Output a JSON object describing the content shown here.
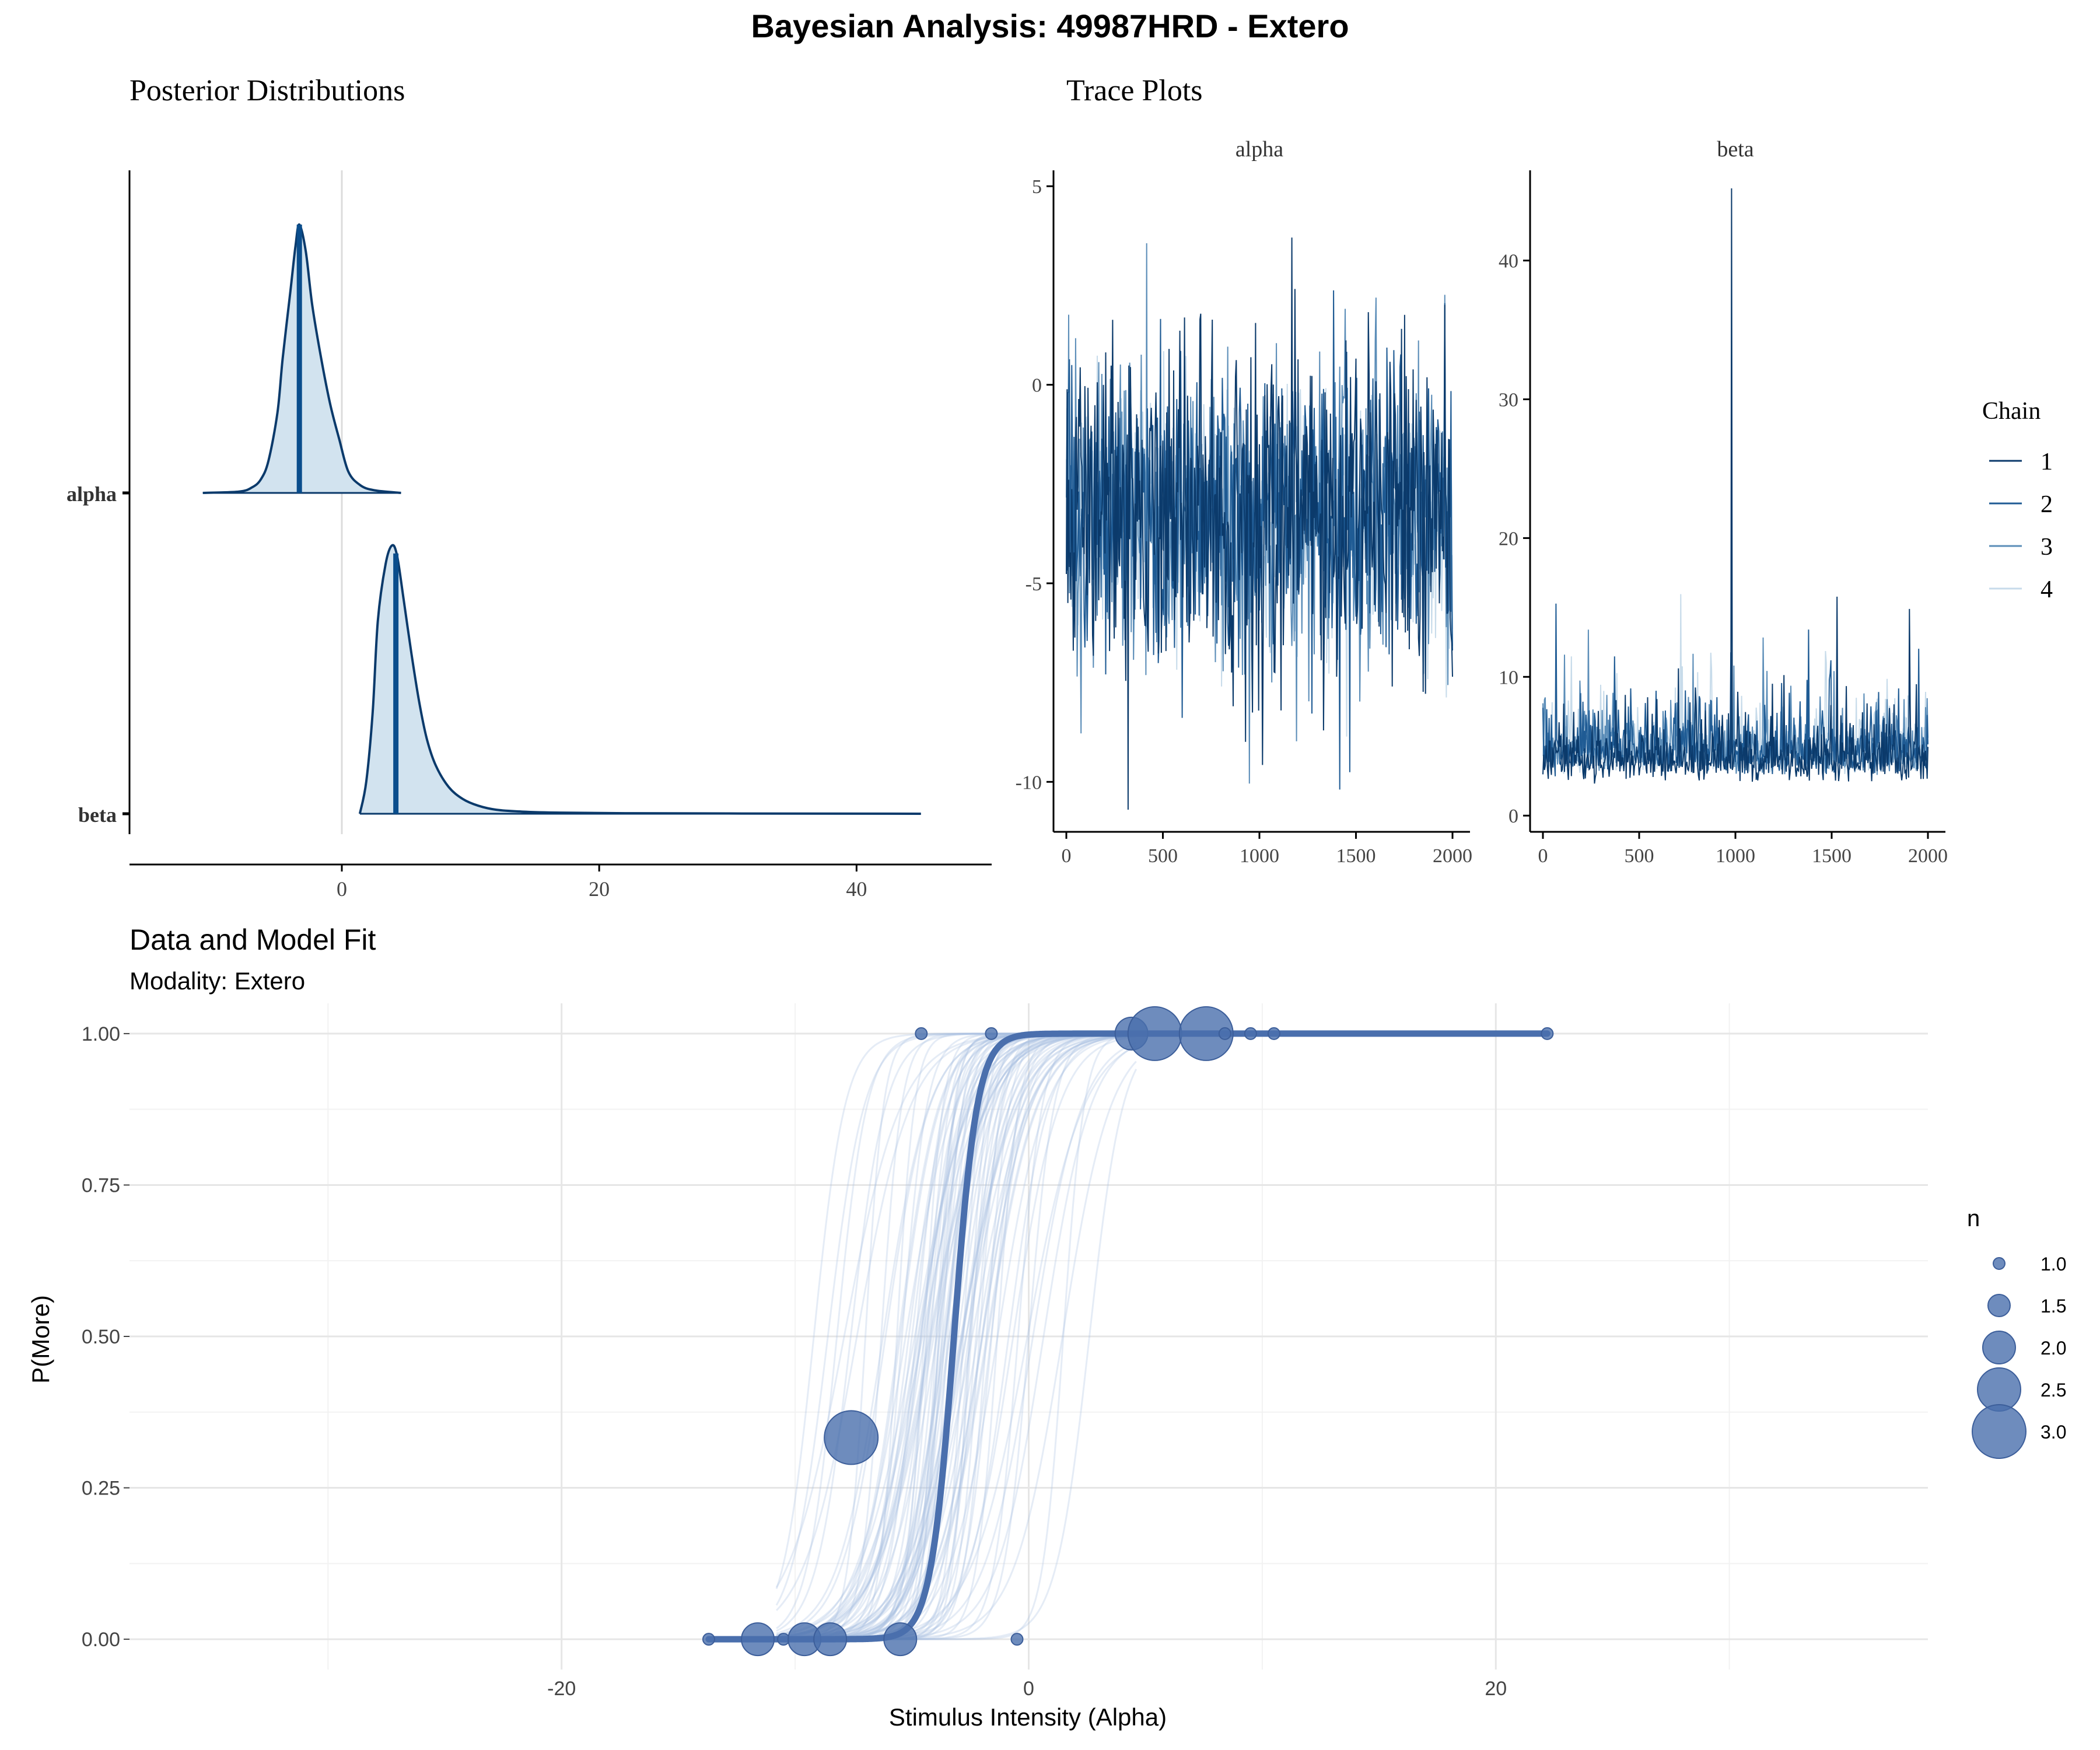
{
  "title": "Bayesian Analysis: 49987HRD - Extero",
  "colors": {
    "dark": "#0b3a6b",
    "mid": "#1f5b94",
    "light": "#5b8db8",
    "pale": "#c7dbea",
    "fill": "#d2e3ef",
    "point": "#4a6fad",
    "grid": "#e6e6e6"
  },
  "posterior": {
    "title": "Posterior Distributions",
    "chart_data": {
      "type": "area",
      "xlim": [
        -16.5,
        50.5
      ],
      "x_ticks": [
        0,
        20,
        40
      ],
      "vline": 0,
      "params": [
        {
          "name": "alpha",
          "median": -3.3,
          "x": [
            -10.8,
            -8,
            -7,
            -6.3,
            -5.7,
            -5,
            -4.6,
            -4,
            -3.6,
            -3.3,
            -2.8,
            -2.3,
            -1.6,
            -0.9,
            -0.2,
            0.5,
            1.4,
            2.5,
            4.6
          ],
          "y": [
            0,
            0.005,
            0.02,
            0.05,
            0.12,
            0.3,
            0.5,
            0.75,
            0.92,
            1.0,
            0.9,
            0.7,
            0.5,
            0.33,
            0.2,
            0.08,
            0.03,
            0.01,
            0
          ]
        },
        {
          "name": "beta",
          "median": 4.2,
          "x": [
            1.4,
            1.9,
            2.4,
            2.8,
            3.4,
            3.9,
            4.3,
            4.8,
            5.4,
            6,
            6.6,
            7.3,
            8.3,
            9.4,
            10.6,
            12,
            14,
            17,
            22,
            30,
            45
          ],
          "y": [
            0,
            0.12,
            0.38,
            0.72,
            0.93,
            1.0,
            0.96,
            0.8,
            0.6,
            0.42,
            0.28,
            0.18,
            0.1,
            0.055,
            0.03,
            0.015,
            0.008,
            0.004,
            0.002,
            0.001,
            0
          ]
        }
      ]
    }
  },
  "trace": {
    "title": "Trace Plots",
    "legend_title": "Chain",
    "chains": [
      "1",
      "2",
      "3",
      "4"
    ],
    "chart_data": [
      {
        "type": "line",
        "panel": "alpha",
        "title": "alpha",
        "xlim": [
          0,
          2000
        ],
        "ylim": [
          -11.2,
          5.4
        ],
        "x_ticks": [
          0,
          500,
          1000,
          1500,
          2000
        ],
        "y_ticks": [
          -10,
          -5,
          0,
          5
        ],
        "y_labels": [
          "-10",
          "-5",
          "0",
          "5"
        ],
        "center": -3.2,
        "sd": 1.9,
        "min": -10.7,
        "max": 4.6,
        "spike_at": 990
      },
      {
        "type": "line",
        "panel": "beta",
        "title": "beta",
        "xlim": [
          0,
          2000
        ],
        "ylim": [
          -1,
          46.5
        ],
        "x_ticks": [
          0,
          500,
          1000,
          1500,
          2000
        ],
        "y_ticks": [
          0,
          10,
          20,
          30,
          40
        ],
        "y_labels": [
          "0",
          "10",
          "20",
          "30",
          "40"
        ],
        "center": 4.5,
        "sd": 2.2,
        "min": 1.5,
        "max": 45.2,
        "spike_at": 980
      }
    ]
  },
  "fit": {
    "title": "Data and Model Fit",
    "subtitle": "Modality: Extero",
    "size_legend": {
      "title": "n",
      "values": [
        1.0,
        1.5,
        2.0,
        2.5,
        3.0
      ],
      "labels": [
        "1.0",
        "1.5",
        "2.0",
        "2.5",
        "3.0"
      ]
    },
    "chart_data": {
      "type": "scatter",
      "xlabel": "Stimulus Intensity (Alpha)",
      "ylabel": "P(More)",
      "xlim": [
        -38.5,
        38.5
      ],
      "ylim": [
        -0.05,
        1.05
      ],
      "x_ticks": [
        -20,
        0,
        20
      ],
      "x_labels": [
        "-20",
        "0",
        "20"
      ],
      "y_ticks": [
        0,
        0.25,
        0.5,
        0.75,
        1.0
      ],
      "y_labels": [
        "0.00",
        "0.25",
        "0.50",
        "0.75",
        "1.00"
      ],
      "curve": {
        "alpha": -3.2,
        "beta": 0.5,
        "x_start": -13.7,
        "x_end": 22.2
      },
      "points": [
        {
          "x": -13.7,
          "y": 0,
          "n": 1
        },
        {
          "x": -11.6,
          "y": 0,
          "n": 2
        },
        {
          "x": -10.5,
          "y": 0,
          "n": 1
        },
        {
          "x": -9.6,
          "y": 0,
          "n": 2
        },
        {
          "x": -8.5,
          "y": 0,
          "n": 2
        },
        {
          "x": -5.5,
          "y": 0,
          "n": 2
        },
        {
          "x": -0.5,
          "y": 0,
          "n": 1
        },
        {
          "x": -7.6,
          "y": 0.333,
          "n": 3
        },
        {
          "x": -4.6,
          "y": 1,
          "n": 1
        },
        {
          "x": -1.6,
          "y": 1,
          "n": 1
        },
        {
          "x": 4.4,
          "y": 1,
          "n": 2
        },
        {
          "x": 5.4,
          "y": 1,
          "n": 3
        },
        {
          "x": 7.6,
          "y": 1,
          "n": 3
        },
        {
          "x": 8.4,
          "y": 1,
          "n": 1
        },
        {
          "x": 9.5,
          "y": 1,
          "n": 1
        },
        {
          "x": 10.5,
          "y": 1,
          "n": 1
        },
        {
          "x": 22.2,
          "y": 1,
          "n": 1
        }
      ]
    }
  }
}
